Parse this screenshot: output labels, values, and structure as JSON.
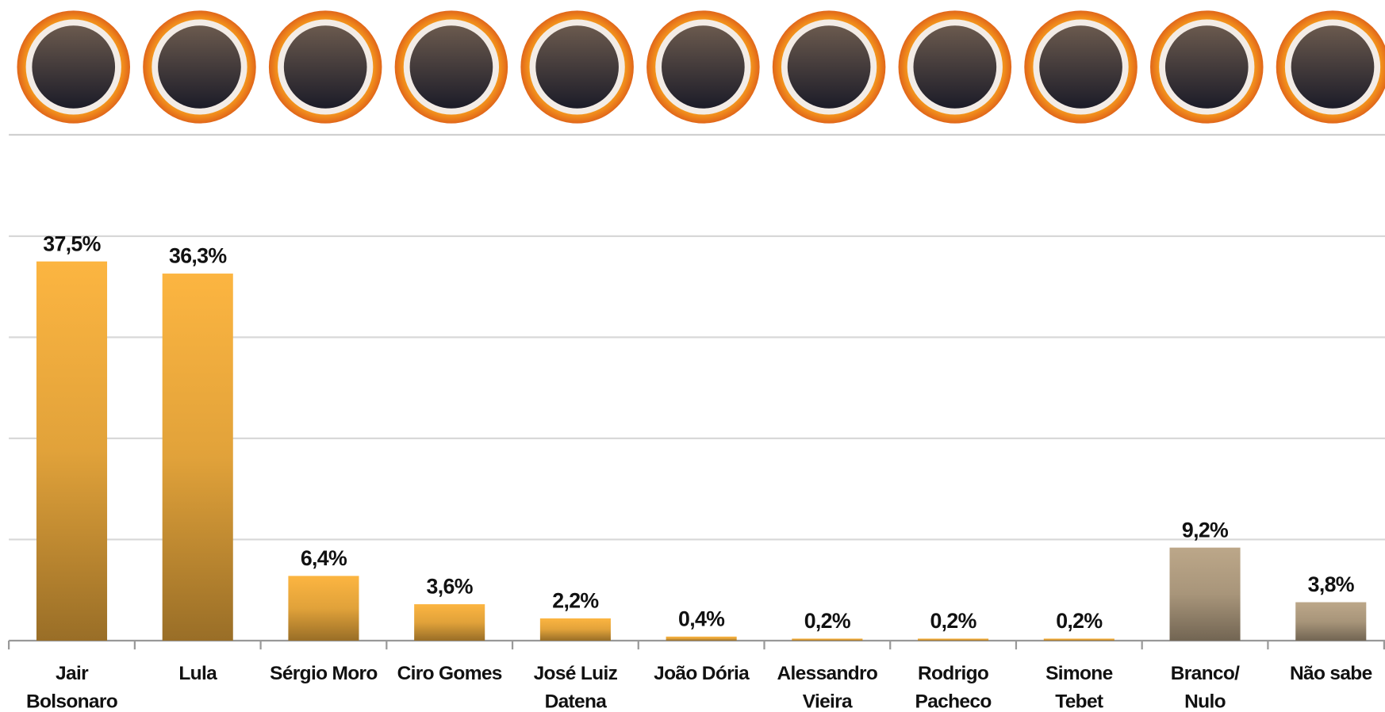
{
  "chart_data": {
    "type": "bar",
    "categories": [
      [
        "Jair",
        "Bolsonaro"
      ],
      [
        "Lula"
      ],
      [
        "Sérgio Moro"
      ],
      [
        "Ciro Gomes"
      ],
      [
        "José Luiz",
        "Datena"
      ],
      [
        "João Dória"
      ],
      [
        "Alessandro",
        "Vieira"
      ],
      [
        "Rodrigo",
        "Pacheco"
      ],
      [
        "Simone",
        "Tebet"
      ],
      [
        "Branco/",
        "Nulo"
      ],
      [
        "Não sabe"
      ]
    ],
    "values": [
      37.5,
      36.3,
      6.4,
      3.6,
      2.2,
      0.4,
      0.2,
      0.2,
      0.2,
      9.2,
      3.8
    ],
    "value_labels": [
      "37,5%",
      "36,3%",
      "6,4%",
      "3,6%",
      "2,2%",
      "0,4%",
      "0,2%",
      "0,2%",
      "0,2%",
      "9,2%",
      "3,8%"
    ],
    "colors": [
      "#e1a23a",
      "#e1a23a",
      "#e1a23a",
      "#e1a23a",
      "#e1a23a",
      "#e1a23a",
      "#e1a23a",
      "#e1a23a",
      "#e1a23a",
      "#a8957a",
      "#a8957a"
    ],
    "ylim": [
      0,
      40
    ],
    "yticks": [
      0,
      10,
      20,
      30,
      40
    ],
    "grid": true
  }
}
